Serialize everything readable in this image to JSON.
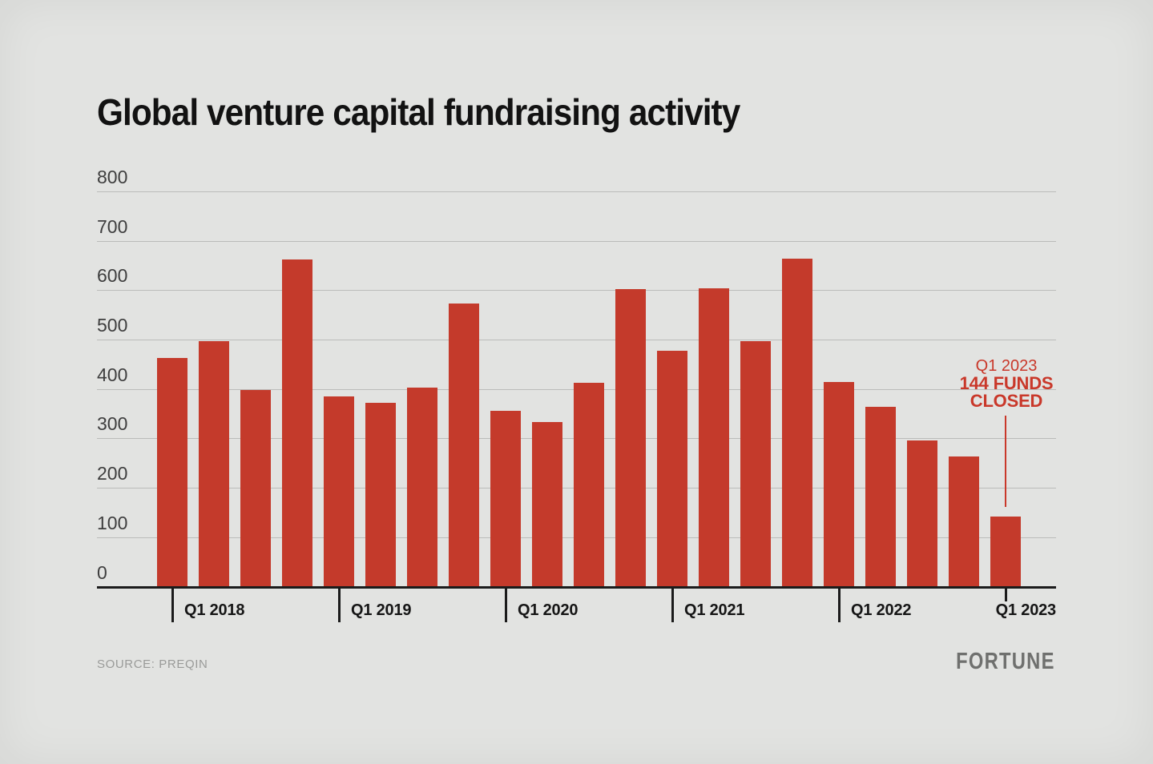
{
  "page": {
    "background_color": "#e2e3e1"
  },
  "header": {
    "title": "Global venture capital fundraising activity"
  },
  "chart_data": {
    "type": "bar",
    "title": "Global venture capital fundraising activity",
    "categories": [
      "Q1 2018",
      "Q2 2018",
      "Q3 2018",
      "Q4 2018",
      "Q1 2019",
      "Q2 2019",
      "Q3 2019",
      "Q4 2019",
      "Q1 2020",
      "Q2 2020",
      "Q3 2020",
      "Q4 2020",
      "Q1 2021",
      "Q2 2021",
      "Q3 2021",
      "Q4 2021",
      "Q1 2022",
      "Q2 2022",
      "Q3 2022",
      "Q4 2022",
      "Q1 2023"
    ],
    "values": [
      465,
      500,
      400,
      665,
      387,
      375,
      405,
      575,
      358,
      336,
      415,
      605,
      480,
      606,
      500,
      666,
      416,
      366,
      298,
      266,
      144
    ],
    "unit": "funds closed",
    "xlabel": "",
    "ylabel": "",
    "ylim": [
      0,
      800
    ],
    "yticks": [
      0,
      100,
      200,
      300,
      400,
      500,
      600,
      700,
      800
    ],
    "xticks": [
      "Q1 2018",
      "Q1 2019",
      "Q1 2020",
      "Q1 2021",
      "Q1 2022",
      "Q1 2023"
    ],
    "grid": true,
    "legend": false,
    "bar_color": "#c43a2b",
    "annotation": {
      "lines": [
        "Q1 2023",
        "144 FUNDS",
        "CLOSED"
      ],
      "target_category": "Q1 2023",
      "target_value": 144,
      "color": "#c9382a"
    }
  },
  "footer": {
    "source": "SOURCE: PREQIN",
    "brand": "FORTUNE"
  }
}
